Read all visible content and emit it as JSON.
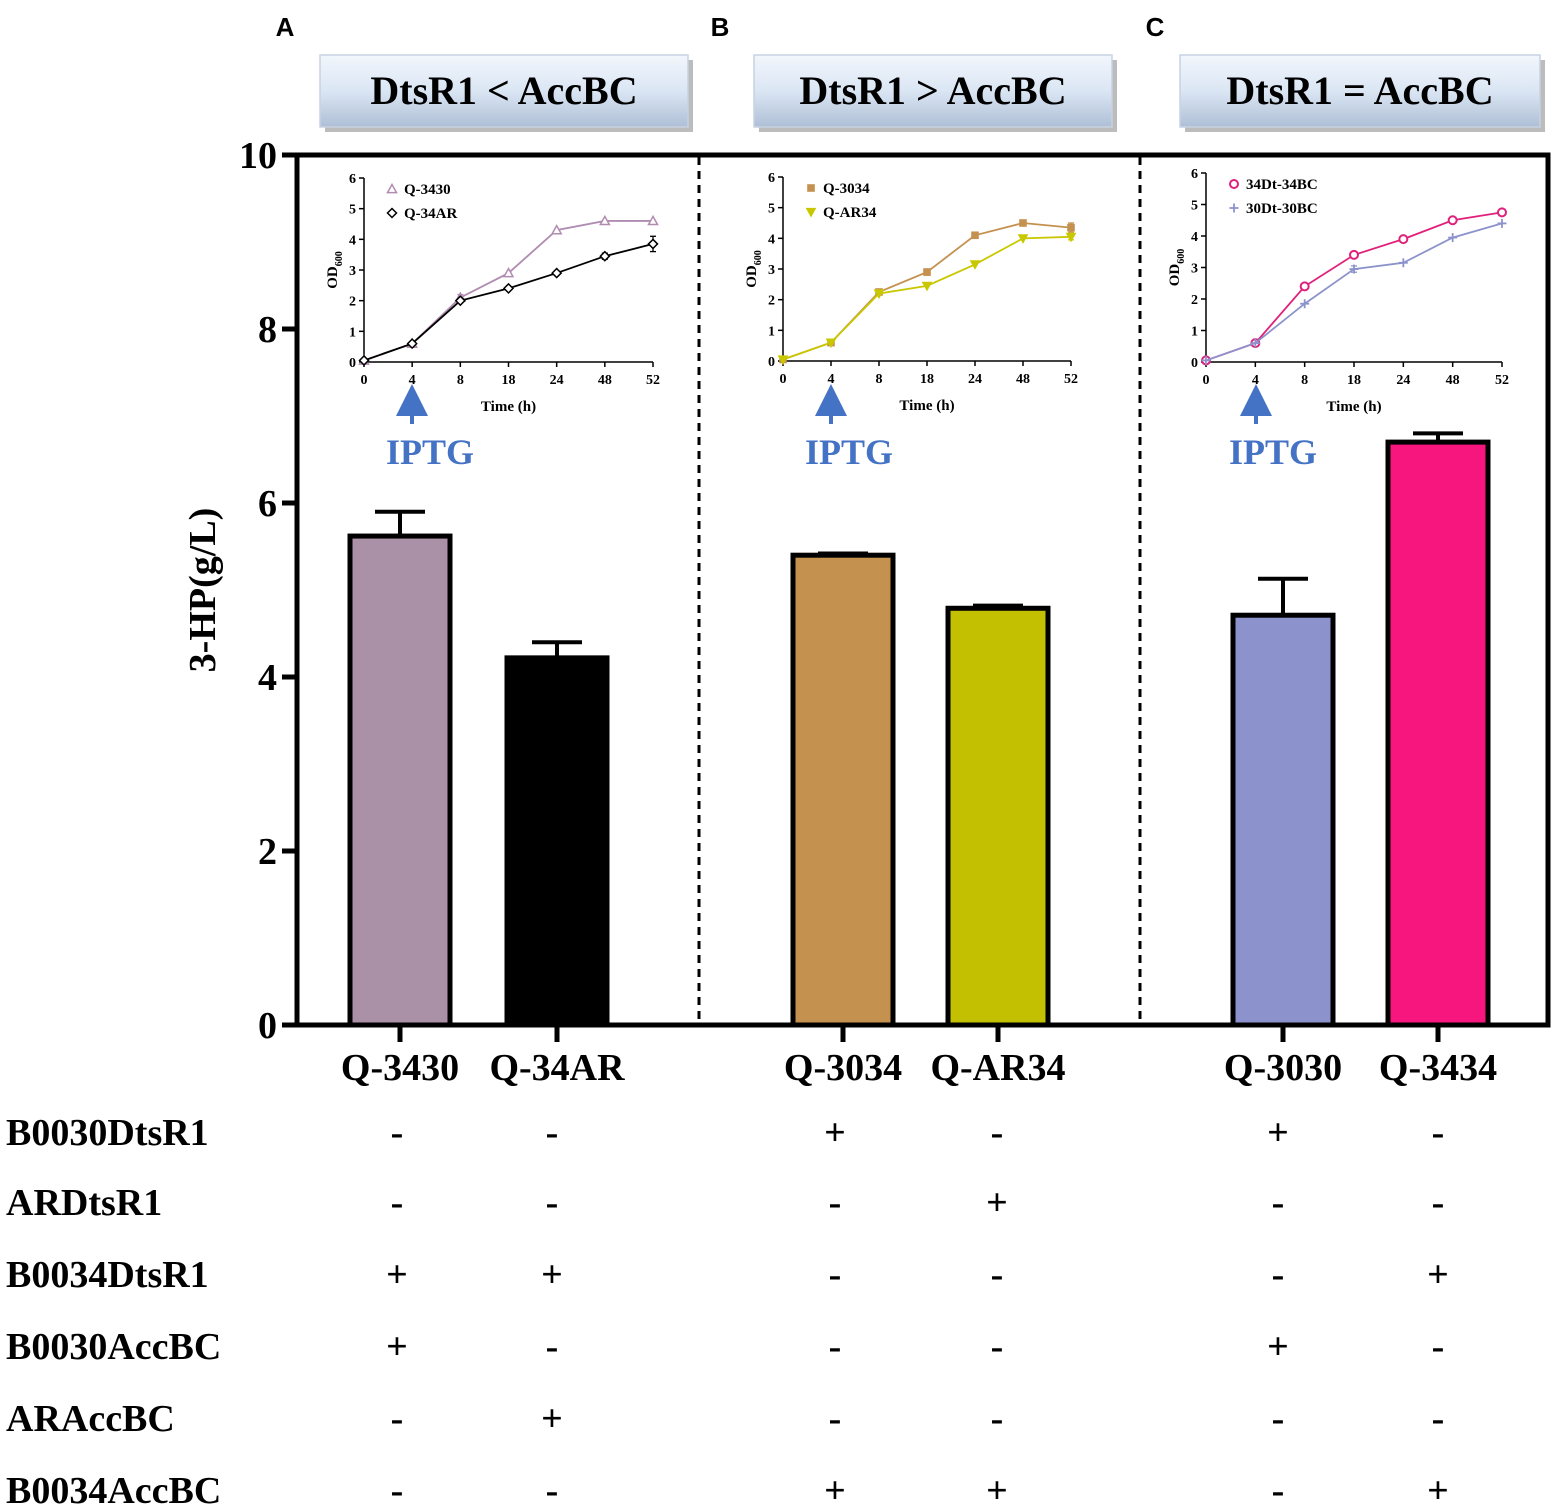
{
  "panels": [
    {
      "letter": "A",
      "header": "DtsR1 < AccBC"
    },
    {
      "letter": "B",
      "header": "DtsR1 > AccBC"
    },
    {
      "letter": "C",
      "header": "DtsR1 = AccBC"
    }
  ],
  "chart_data": [
    {
      "id": "main",
      "type": "bar",
      "ylabel": "3-HP(g/L)",
      "ylim": [
        0,
        10
      ],
      "yticks": [
        0,
        2,
        4,
        6,
        8,
        10
      ],
      "grid": false,
      "categories": [
        "Q-3430",
        "Q-34AR",
        "Q-3034",
        "Q-AR34",
        "Q-3030",
        "Q-3434"
      ],
      "values": [
        5.62,
        4.22,
        5.4,
        4.79,
        4.71,
        6.7
      ],
      "errors": [
        0.28,
        0.18,
        0.02,
        0.03,
        0.42,
        0.1
      ],
      "colors": [
        "#ab91a8",
        "#000000",
        "#c4914f",
        "#c2c000",
        "#8c93cc",
        "#f7167d"
      ],
      "group_separators": "dashed vertical lines between panels"
    },
    {
      "id": "inset-A",
      "type": "line",
      "xlabel": "Time (h)",
      "ylabel": "OD600",
      "ylabel_main": "OD",
      "ylabel_sub": "600",
      "x": [
        "0",
        "4",
        "8",
        "18",
        "24",
        "48",
        "52"
      ],
      "ylim": [
        0,
        6
      ],
      "yticks": [
        0,
        1,
        2,
        3,
        4,
        5,
        6
      ],
      "annotation": "IPTG",
      "series": [
        {
          "name": "Q-3430",
          "color": "#b08cb0",
          "marker": "triangle",
          "values": [
            0.05,
            0.6,
            2.1,
            2.9,
            4.3,
            4.6,
            4.6
          ],
          "errors": [
            0,
            0,
            0.1,
            0,
            0,
            0,
            0
          ]
        },
        {
          "name": "Q-34AR",
          "color": "#000000",
          "marker": "diamond",
          "values": [
            0.05,
            0.6,
            2.0,
            2.4,
            2.9,
            3.45,
            3.85
          ],
          "errors": [
            0,
            0,
            0,
            0,
            0,
            0.1,
            0.25
          ]
        }
      ]
    },
    {
      "id": "inset-B",
      "type": "line",
      "xlabel": "Time (h)",
      "ylabel": "OD600",
      "ylabel_main": "OD",
      "ylabel_sub": "600",
      "x": [
        "0",
        "4",
        "8",
        "18",
        "24",
        "48",
        "52"
      ],
      "ylim": [
        0,
        6
      ],
      "yticks": [
        0,
        1,
        2,
        3,
        4,
        5,
        6
      ],
      "annotation": "IPTG",
      "series": [
        {
          "name": "Q-3034",
          "color": "#c4914f",
          "marker": "square",
          "values": [
            0.05,
            0.6,
            2.25,
            2.9,
            4.1,
            4.5,
            4.35
          ],
          "errors": [
            0,
            0,
            0.05,
            0.1,
            0,
            0,
            0.15
          ]
        },
        {
          "name": "Q-AR34",
          "color": "#c9c800",
          "marker": "triangle-down",
          "values": [
            0.05,
            0.6,
            2.2,
            2.45,
            3.15,
            4.0,
            4.05
          ],
          "errors": [
            0,
            0,
            0,
            0,
            0,
            0,
            0.1
          ]
        }
      ]
    },
    {
      "id": "inset-C",
      "type": "line",
      "xlabel": "Time (h)",
      "ylabel": "OD600",
      "ylabel_main": "OD",
      "ylabel_sub": "600",
      "x": [
        "0",
        "4",
        "8",
        "18",
        "24",
        "48",
        "52"
      ],
      "ylim": [
        0,
        6
      ],
      "yticks": [
        0,
        1,
        2,
        3,
        4,
        5,
        6
      ],
      "annotation": "IPTG",
      "series": [
        {
          "name": "34Dt-34BC",
          "color": "#e0207a",
          "marker": "circle",
          "values": [
            0.05,
            0.6,
            2.4,
            3.4,
            3.9,
            4.5,
            4.75
          ],
          "errors": [
            0,
            0,
            0,
            0,
            0,
            0,
            0
          ]
        },
        {
          "name": "30Dt-30BC",
          "color": "#8c93cc",
          "marker": "plus",
          "values": [
            0.05,
            0.6,
            1.85,
            2.95,
            3.15,
            3.95,
            4.4
          ],
          "errors": [
            0,
            0,
            0,
            0.1,
            0,
            0,
            0
          ]
        }
      ]
    }
  ],
  "constructs": {
    "rows": [
      {
        "label": "B0030DtsR1",
        "marks": [
          "-",
          "-",
          "+",
          "-",
          "+",
          "-"
        ]
      },
      {
        "label": "ARDtsR1",
        "marks": [
          "-",
          "-",
          "-",
          "+",
          "-",
          "-"
        ]
      },
      {
        "label": "B0034DtsR1",
        "marks": [
          "+",
          "+",
          "-",
          "-",
          "-",
          "+"
        ]
      },
      {
        "label": "B0030AccBC",
        "marks": [
          "+",
          "-",
          "-",
          "-",
          "+",
          "-"
        ]
      },
      {
        "label": "ARAccBC",
        "marks": [
          "-",
          "+",
          "-",
          "-",
          "-",
          "-"
        ]
      },
      {
        "label": "B0034AccBC",
        "marks": [
          "-",
          "-",
          "+",
          "+",
          "-",
          "+"
        ]
      }
    ]
  }
}
